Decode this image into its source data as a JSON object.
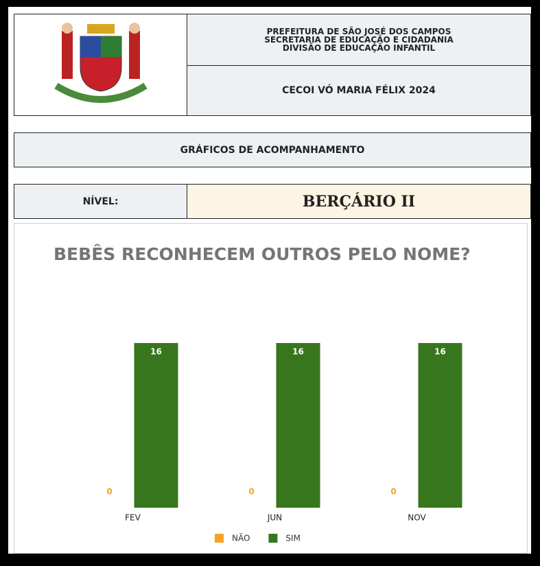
{
  "header": {
    "lines": [
      "PREFEITURA DE SÃO JOSÉ DOS CAMPOS",
      "SECRETARIA DE EDUCAÇÃO E CIDADANIA",
      "DIVISÃO DE EDUCAÇÃO INFANTIL"
    ],
    "school": "CECOI VÓ MARIA FÉLIX 2024"
  },
  "section": {
    "title": "GRÁFICOS DE ACOMPANHAMENTO"
  },
  "level": {
    "label": "NÍVEL:",
    "value": "BERÇÁRIO II"
  },
  "chart_data": {
    "type": "bar",
    "title": "BEBÊS RECONHECEM OUTROS PELO NOME?",
    "categories": [
      "FEV",
      "JUN",
      "NOV"
    ],
    "series": [
      {
        "name": "NÃO",
        "color": "#f6a323",
        "values": [
          0,
          0,
          0
        ]
      },
      {
        "name": "SIM",
        "color": "#38761d",
        "values": [
          16,
          16,
          16
        ]
      }
    ],
    "ylim": [
      0,
      16
    ]
  }
}
